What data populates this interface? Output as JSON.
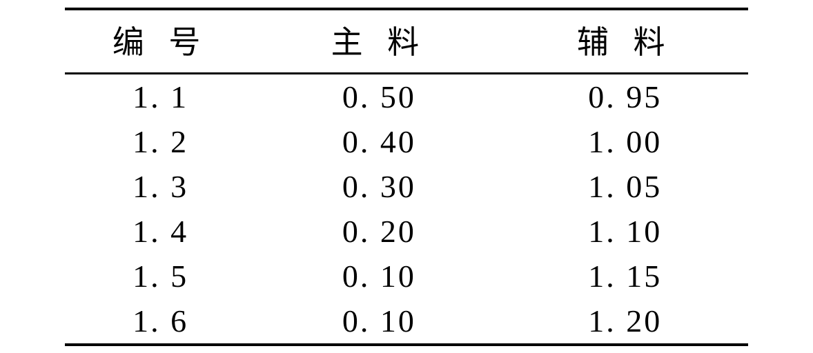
{
  "table": {
    "type": "table",
    "columns": [
      "编 号",
      "主 料",
      "辅 料"
    ],
    "rows": [
      [
        "1. 1",
        "0. 50",
        "0. 95"
      ],
      [
        "1. 2",
        "0. 40",
        "1. 00"
      ],
      [
        "1. 3",
        "0. 30",
        "1. 05"
      ],
      [
        "1. 4",
        "0. 20",
        "1. 10"
      ],
      [
        "1. 5",
        "0. 10",
        "1. 15"
      ],
      [
        "1. 6",
        "0. 10",
        "1. 20"
      ]
    ],
    "border_color": "#000000",
    "top_border_width": 4,
    "header_border_width": 3,
    "bottom_border_width": 4,
    "background_color": "#ffffff",
    "text_color": "#000000",
    "header_fontsize": 46,
    "cell_fontsize": 46,
    "column_widths_pct": [
      28,
      36,
      36
    ],
    "column_alignments": [
      "center",
      "center",
      "center"
    ]
  }
}
